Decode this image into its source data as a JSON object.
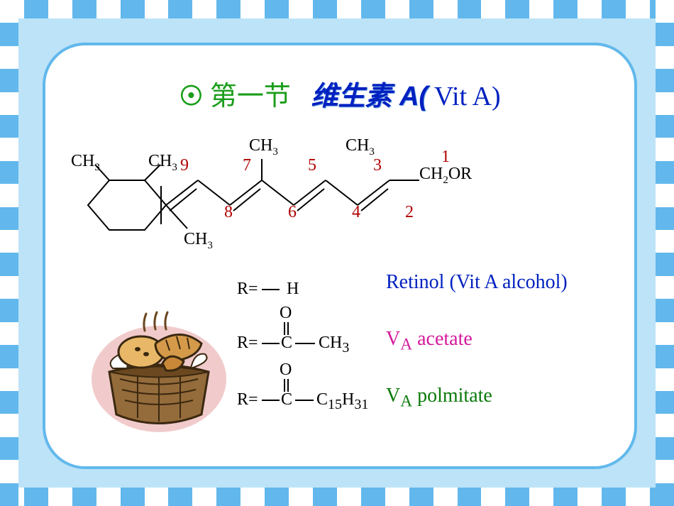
{
  "title": {
    "bullet": "☉",
    "section": "第一节",
    "name": "维生素 A(",
    "paren": " Vit A)"
  },
  "structure": {
    "ch3_labels": [
      "CH",
      "CH",
      "CH",
      "CH",
      "CH",
      "CH"
    ],
    "ch2or": "CH",
    "or_suffix": "OR",
    "position_numbers": [
      "9",
      "8",
      "7",
      "6",
      "5",
      "4",
      "3",
      "2",
      "1"
    ],
    "colors": {
      "bond": "#000000",
      "number": "#b00000",
      "text": "#000000"
    }
  },
  "r_groups": [
    {
      "r": "R=",
      "group": "H",
      "name": "Retinol (Vit A alcohol)",
      "color": "#0020c0"
    },
    {
      "r": "R=",
      "o": "O",
      "c": "C",
      "tail": "CH",
      "tail_sub": "3",
      "name_prefix": "V",
      "name_sub": "A",
      "name_rest": " acetate",
      "color": "#d4189c"
    },
    {
      "r": "R=",
      "o": "O",
      "c": "C",
      "tail": "C",
      "tail_sub": "15",
      "tail2": "H",
      "tail2_sub": "31",
      "name_prefix": "V",
      "name_sub": "A",
      "name_rest": " polmitate",
      "color": "#0a7a0a"
    }
  ],
  "basket": {
    "colors": {
      "outline": "#e8a8a8",
      "basket_fill": "#946b3a",
      "basket_dark": "#6b4820",
      "bread1": "#e8b868",
      "bread2": "#d49a4a",
      "bread3": "#c88838",
      "cloth": "#ffffff",
      "steam": "#6b4820"
    }
  }
}
